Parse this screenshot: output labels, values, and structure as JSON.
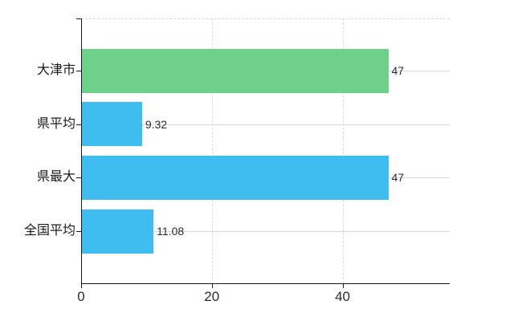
{
  "chart": {
    "background_color": "#ffffff",
    "axis_color": "#1a1a1a",
    "gridline_color": "#d6dad4",
    "top_border_color": "#d8d4d8",
    "label_color": "#1a1a1a",
    "value_label_color": "#2b2b2b"
  },
  "chart_data": {
    "type": "bar",
    "orientation": "horizontal",
    "title": "",
    "xlabel": "",
    "ylabel": "",
    "categories": [
      "大津市",
      "県平均",
      "県最大",
      "全国平均"
    ],
    "series": [
      {
        "name": "value",
        "values": [
          47,
          9.32,
          47,
          11.08
        ]
      }
    ],
    "value_labels": [
      "47",
      "9.32",
      "47",
      "11.08"
    ],
    "bar_colors": [
      "#6dd08b",
      "#40bdf0",
      "#40bdf0",
      "#40bdf0"
    ],
    "x_tick_labels": [
      "0",
      "20",
      "40"
    ],
    "x_tick_values": [
      0,
      20,
      40
    ],
    "xlim": [
      0,
      56.4
    ],
    "grid": true,
    "legend_position": "none"
  }
}
